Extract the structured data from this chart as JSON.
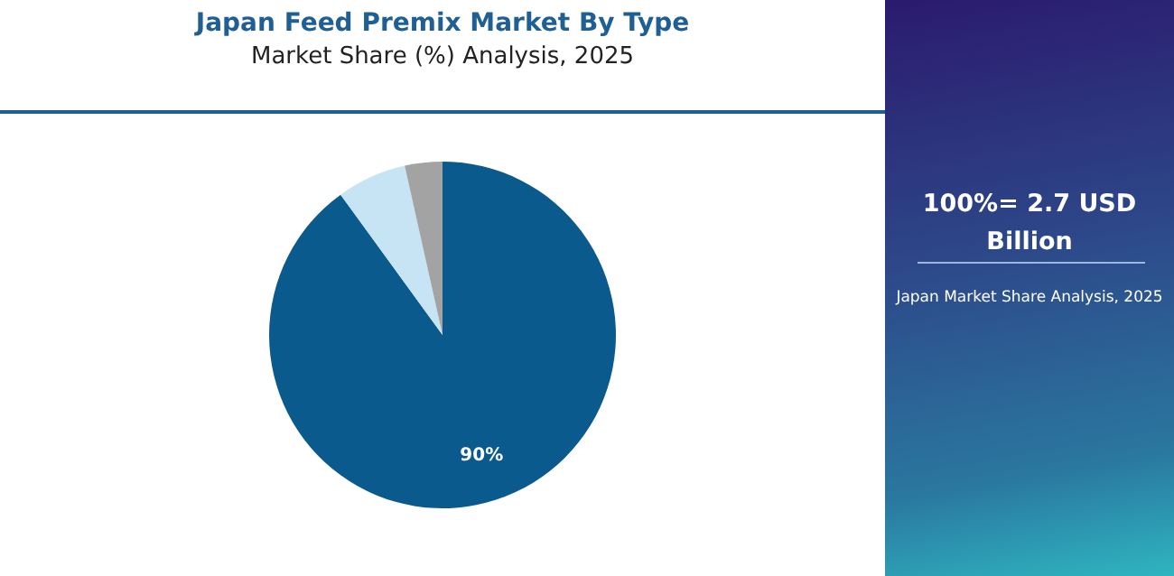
{
  "chart_data": {
    "type": "pie",
    "title": "Japan Feed Premix Market By Type",
    "subtitle": "Market Share (%) Analysis, 2025",
    "categories": [
      null,
      null,
      null
    ],
    "values": [
      90,
      6.5,
      3.5
    ],
    "colors": [
      "#0b5a8e",
      "#c6e4f3",
      "#a3a3a3"
    ],
    "value_labels": [
      "90%",
      null,
      null
    ],
    "legend": false,
    "annotations": [
      "100%= 2.7 USD Billion",
      "Japan Market Share Analysis, 2025"
    ]
  }
}
